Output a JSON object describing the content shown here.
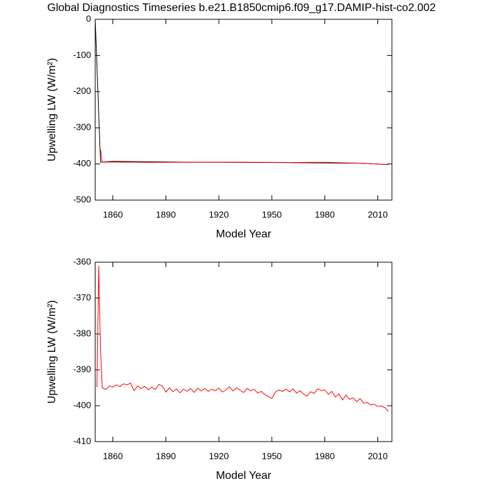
{
  "chart_data": [
    {
      "type": "line",
      "title": "Global Diagnostics Timeseries b.e21.B1850cmip6.f09_g17.DAMIP-hist-co2.002",
      "x_label": "Model Year",
      "y_label": "Upwelling LW (W/m²)",
      "xlim": [
        1850,
        2018
      ],
      "xticks": [
        1860,
        1890,
        1920,
        1950,
        1980,
        2010
      ],
      "ylim": [
        -500,
        0
      ],
      "yticks": [
        -500,
        -400,
        -300,
        -200,
        -100,
        0
      ],
      "series": [
        {
          "color": "#000000",
          "x": [
            1850,
            1851,
            1852,
            1853,
            1860,
            1900,
            1950,
            2000,
            2016
          ],
          "values": [
            0,
            -130,
            -265,
            -395,
            -393,
            -395,
            -396,
            -398,
            -402
          ]
        },
        {
          "color": "#ff0000",
          "x": [
            1853,
            1854,
            1860,
            1880,
            1900,
            1920,
            1940,
            1960,
            1980,
            2000,
            2016
          ],
          "values": [
            -360,
            -395,
            -394.8,
            -395.6,
            -395.4,
            -395.1,
            -395.4,
            -396.1,
            -395.6,
            -398,
            -401.6
          ]
        }
      ]
    },
    {
      "type": "line",
      "x_label": "Model Year",
      "y_label": "Upwelling LW (W/m²)",
      "xlim": [
        1850,
        2018
      ],
      "xticks": [
        1860,
        1890,
        1920,
        1950,
        1980,
        2010
      ],
      "ylim": [
        -410,
        -360
      ],
      "yticks": [
        -410,
        -400,
        -390,
        -380,
        -370,
        -360
      ],
      "series": [
        {
          "color": "#ff0000",
          "x": [
            1851,
            1852,
            1853,
            1854,
            1856,
            1858,
            1860,
            1862,
            1864,
            1866,
            1868,
            1870,
            1872,
            1874,
            1876,
            1878,
            1880,
            1882,
            1884,
            1886,
            1888,
            1890,
            1892,
            1894,
            1896,
            1898,
            1900,
            1902,
            1904,
            1906,
            1908,
            1910,
            1912,
            1914,
            1916,
            1918,
            1920,
            1922,
            1924,
            1926,
            1928,
            1930,
            1932,
            1934,
            1936,
            1938,
            1940,
            1942,
            1944,
            1946,
            1948,
            1950,
            1952,
            1954,
            1956,
            1958,
            1960,
            1962,
            1964,
            1966,
            1968,
            1970,
            1972,
            1974,
            1976,
            1978,
            1980,
            1982,
            1984,
            1986,
            1988,
            1990,
            1992,
            1994,
            1996,
            1998,
            2000,
            2002,
            2004,
            2006,
            2008,
            2010,
            2012,
            2014,
            2016
          ],
          "values": [
            -394.8,
            -361,
            -385,
            -395,
            -395.5,
            -394.5,
            -394.8,
            -394.2,
            -394.7,
            -393.9,
            -394.2,
            -393.7,
            -395.8,
            -394.5,
            -395.2,
            -394.6,
            -395.6,
            -394.8,
            -395.5,
            -394.1,
            -394.5,
            -396.2,
            -395.0,
            -396.1,
            -395.3,
            -396.4,
            -395.4,
            -396.0,
            -395.2,
            -396.3,
            -395.1,
            -395.9,
            -395.2,
            -396.0,
            -395.4,
            -395.8,
            -395.1,
            -396.2,
            -395.6,
            -394.7,
            -395.9,
            -395.0,
            -395.7,
            -396.3,
            -395.2,
            -395.8,
            -395.4,
            -396.5,
            -396.0,
            -396.9,
            -397.4,
            -398.0,
            -396.2,
            -395.6,
            -396.0,
            -395.4,
            -396.1,
            -395.3,
            -396.5,
            -395.8,
            -396.8,
            -397.3,
            -396.1,
            -396.6,
            -395.3,
            -395.8,
            -395.6,
            -396.8,
            -396.0,
            -397.6,
            -396.7,
            -398.4,
            -397.0,
            -398.2,
            -397.8,
            -398.9,
            -398.0,
            -399.3,
            -399.1,
            -399.8,
            -399.6,
            -400.2,
            -400.1,
            -400.5,
            -401.6
          ]
        }
      ]
    }
  ]
}
